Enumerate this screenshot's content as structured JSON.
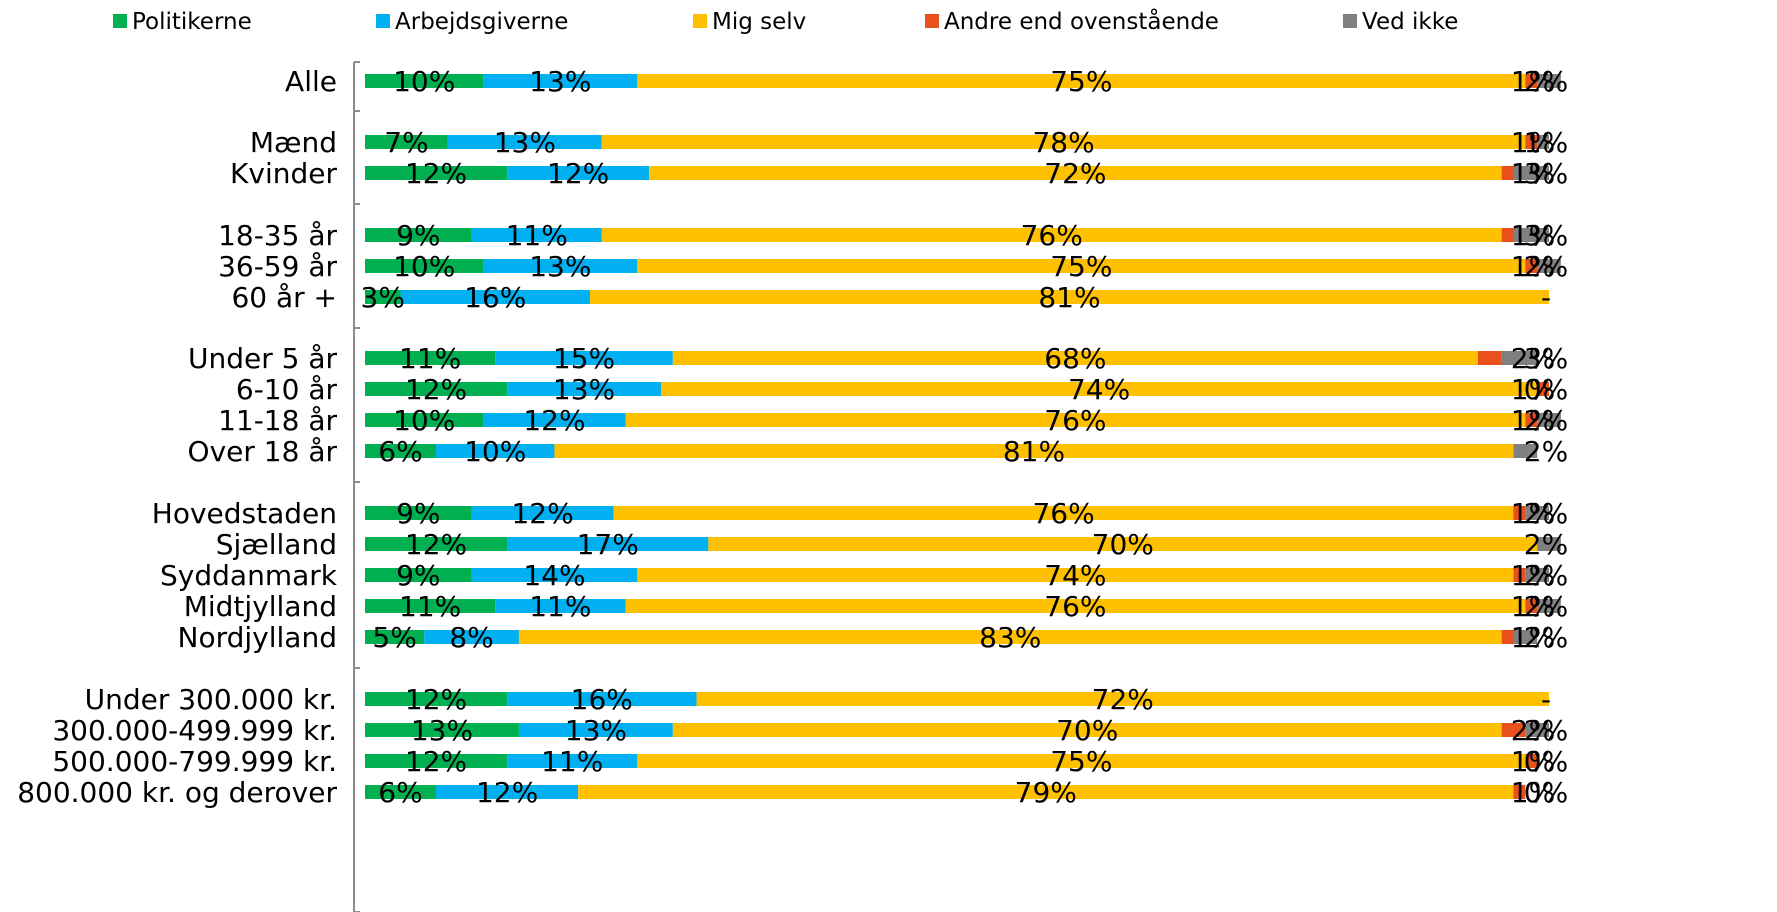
{
  "chart_data": {
    "type": "bar",
    "orientation": "horizontal",
    "stacked": true,
    "grid": false,
    "legend_position": "top",
    "xlim": [
      0,
      100
    ],
    "categories": [
      "Alle",
      "Mænd",
      "Kvinder",
      "18-35 år",
      "36-59 år",
      "60 år +",
      "Under 5 år",
      "6-10 år",
      "11-18 år",
      "Over 18 år",
      "Hovedstaden",
      "Sjælland",
      "Syddanmark",
      "Midtjylland",
      "Nordjylland",
      "Under 300.000 kr.",
      "300.000-499.999 kr.",
      "500.000-799.999 kr.",
      "800.000 kr. og derover"
    ],
    "series": [
      {
        "name": "Politikerne",
        "color": "#00b050",
        "values": [
          10,
          7,
          12,
          9,
          10,
          3,
          11,
          12,
          10,
          6,
          9,
          12,
          9,
          11,
          5,
          12,
          13,
          12,
          6
        ],
        "labels": [
          "10%",
          "7%",
          "12%",
          "9%",
          "10%",
          "3%",
          "11%",
          "12%",
          "10%",
          "6%",
          "9%",
          "12%",
          "9%",
          "11%",
          "5%",
          "12%",
          "13%",
          "12%",
          "6%"
        ]
      },
      {
        "name": "Arbejdsgiverne",
        "color": "#00b0f0",
        "values": [
          13,
          13,
          12,
          11,
          13,
          16,
          15,
          13,
          12,
          10,
          12,
          17,
          14,
          11,
          8,
          16,
          13,
          11,
          12
        ],
        "labels": [
          "13%",
          "13%",
          "12%",
          "11%",
          "13%",
          "16%",
          "15%",
          "13%",
          "12%",
          "10%",
          "12%",
          "17%",
          "14%",
          "11%",
          "8%",
          "16%",
          "13%",
          "11%",
          "12%"
        ]
      },
      {
        "name": "Mig selv",
        "color": "#ffc000",
        "values": [
          75,
          78,
          72,
          76,
          75,
          81,
          68,
          74,
          76,
          81,
          76,
          70,
          74,
          76,
          83,
          72,
          70,
          75,
          79
        ],
        "labels": [
          "75%",
          "78%",
          "72%",
          "76%",
          "75%",
          "81%",
          "68%",
          "74%",
          "76%",
          "81%",
          "76%",
          "70%",
          "74%",
          "76%",
          "83%",
          "72%",
          "70%",
          "75%",
          "79%"
        ]
      },
      {
        "name": "Andre end ovenstående",
        "color": "#e8501c",
        "values": [
          1,
          1,
          1,
          1,
          1,
          0,
          2,
          1,
          1,
          0,
          1,
          0,
          1,
          1,
          1,
          0,
          2,
          1,
          1
        ],
        "labels": [
          "1%",
          "1%",
          "1%",
          "1%",
          "1%",
          "",
          "2%",
          "1%",
          "1%",
          "",
          "1%",
          "",
          "1%",
          "1%",
          "1%",
          "",
          "2%",
          "1%",
          "1%"
        ]
      },
      {
        "name": "Ved ikke",
        "color": "#808080",
        "values": [
          2,
          1,
          3,
          3,
          2,
          0,
          3,
          0,
          2,
          2,
          2,
          2,
          2,
          2,
          2,
          0,
          2,
          0,
          0
        ],
        "labels": [
          "2%",
          "1%",
          "3%",
          "3%",
          "2%",
          "-",
          "3%",
          "0%",
          "2%",
          "2%",
          "2%",
          "2%",
          "2%",
          "2%",
          "2%",
          "-",
          "2%",
          "0%",
          "0%"
        ]
      }
    ]
  }
}
